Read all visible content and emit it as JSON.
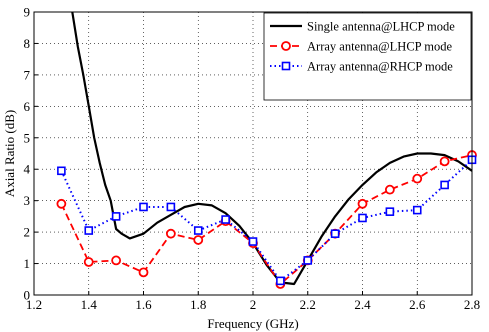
{
  "chart_data": {
    "type": "line",
    "xlabel": "Frequency (GHz)",
    "ylabel": "Axial Ratio (dB)",
    "xlim": [
      1.2,
      2.8
    ],
    "ylim": [
      0,
      9
    ],
    "xticks": [
      "1.2",
      "1.4",
      "1.6",
      "1.8",
      "2",
      "2.2",
      "2.4",
      "2.6",
      "2.8"
    ],
    "yticks": [
      "0",
      "1",
      "2",
      "3",
      "4",
      "5",
      "6",
      "7",
      "8",
      "9"
    ],
    "grid": true,
    "legend_position": "top-right",
    "series": [
      {
        "name": "Single antenna@LHCP mode",
        "color": "#000000",
        "line_style": "solid",
        "marker": "none",
        "x": [
          1.34,
          1.36,
          1.38,
          1.4,
          1.42,
          1.44,
          1.46,
          1.48,
          1.5,
          1.52,
          1.55,
          1.6,
          1.65,
          1.7,
          1.75,
          1.8,
          1.85,
          1.9,
          1.95,
          2.0,
          2.05,
          2.1,
          2.15,
          2.2,
          2.25,
          2.3,
          2.35,
          2.4,
          2.45,
          2.5,
          2.55,
          2.6,
          2.65,
          2.7,
          2.75,
          2.8
        ],
        "y": [
          9.0,
          7.9,
          7.0,
          6.0,
          5.0,
          4.2,
          3.5,
          3.0,
          2.1,
          1.95,
          1.8,
          1.95,
          2.3,
          2.55,
          2.8,
          2.9,
          2.85,
          2.6,
          2.2,
          1.65,
          0.95,
          0.4,
          0.35,
          1.1,
          1.85,
          2.5,
          3.05,
          3.5,
          3.9,
          4.2,
          4.4,
          4.5,
          4.5,
          4.45,
          4.25,
          3.95
        ]
      },
      {
        "name": "Array antenna@LHCP mode",
        "color": "#ff0000",
        "line_style": "dashed",
        "marker": "circle",
        "x": [
          1.3,
          1.4,
          1.5,
          1.6,
          1.7,
          1.8,
          1.9,
          2.0,
          2.1,
          2.2,
          2.3,
          2.4,
          2.5,
          2.6,
          2.7,
          2.8
        ],
        "y": [
          2.9,
          1.05,
          1.1,
          0.72,
          1.95,
          1.75,
          2.35,
          1.65,
          0.35,
          1.1,
          1.95,
          2.9,
          3.35,
          3.7,
          4.25,
          4.45
        ]
      },
      {
        "name": "Array antenna@RHCP mode",
        "color": "#0000ff",
        "line_style": "dotted",
        "marker": "square",
        "x": [
          1.3,
          1.4,
          1.5,
          1.6,
          1.7,
          1.8,
          1.9,
          2.0,
          2.1,
          2.2,
          2.3,
          2.4,
          2.5,
          2.6,
          2.7,
          2.8
        ],
        "y": [
          3.95,
          2.05,
          2.5,
          2.8,
          2.8,
          2.05,
          2.4,
          1.7,
          0.45,
          1.1,
          1.95,
          2.45,
          2.65,
          2.7,
          3.5,
          4.3
        ]
      }
    ]
  }
}
